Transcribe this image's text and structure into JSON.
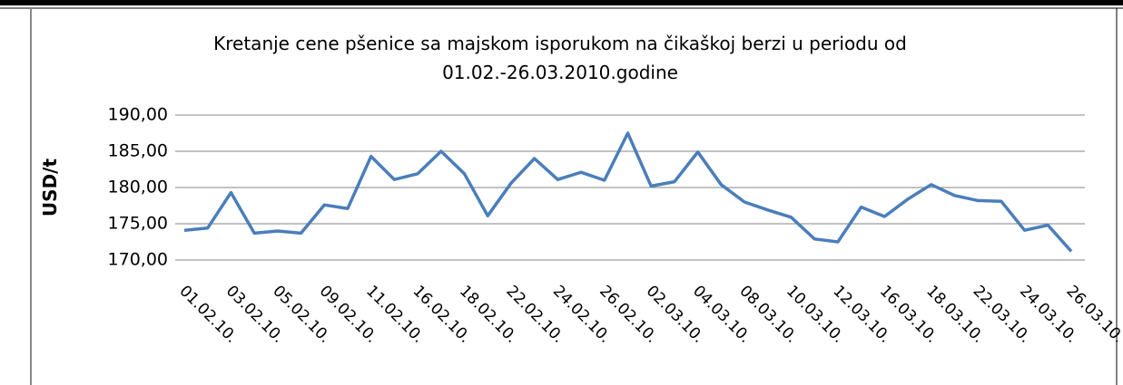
{
  "chart_data": {
    "type": "line",
    "title": [
      "Kretanje cene pšenice sa majskom isporukom na čikaškoj berzi u periodu od",
      "01.02.-26.03.2010.godine"
    ],
    "y_label": "USD/t",
    "categories": [
      "01.02.10.",
      null,
      "03.02.10.",
      null,
      "05.02.10.",
      null,
      "09.02.10.",
      null,
      "11.02.10.",
      null,
      "16.02.10.",
      null,
      "18.02.10.",
      null,
      "22.02.10.",
      null,
      "24.02.10.",
      null,
      "26.02.10.",
      null,
      "02.03.10.",
      null,
      "04.03.10.",
      null,
      "08.03.10.",
      null,
      "10.03.10.",
      null,
      "12.03.10.",
      null,
      "16.03.10.",
      null,
      "18.03.10.",
      null,
      "22.03.10.",
      null,
      "24.03.10.",
      null,
      "26.03.10."
    ],
    "series": [
      {
        "color": "#4a7ebb",
        "values": [
          174.1,
          174.4,
          179.3,
          173.7,
          174.0,
          173.7,
          177.6,
          177.1,
          184.3,
          181.1,
          181.9,
          185.0,
          181.9,
          176.1,
          180.6,
          184.0,
          181.1,
          182.1,
          181.0,
          187.5,
          180.2,
          180.8,
          184.9,
          180.4,
          178.0,
          176.9,
          175.9,
          172.9,
          172.5,
          177.3,
          176.0,
          178.4,
          180.4,
          178.9,
          178.2,
          178.1,
          174.1,
          174.8,
          171.2
        ]
      }
    ],
    "ylim": [
      170,
      190
    ],
    "yticks": [
      {
        "value": 170,
        "label": "170,00"
      },
      {
        "value": 175,
        "label": "175,00"
      },
      {
        "value": 180,
        "label": "180,00"
      },
      {
        "value": 185,
        "label": "185,00"
      },
      {
        "value": 190,
        "label": "190,00"
      }
    ],
    "grid": true
  }
}
